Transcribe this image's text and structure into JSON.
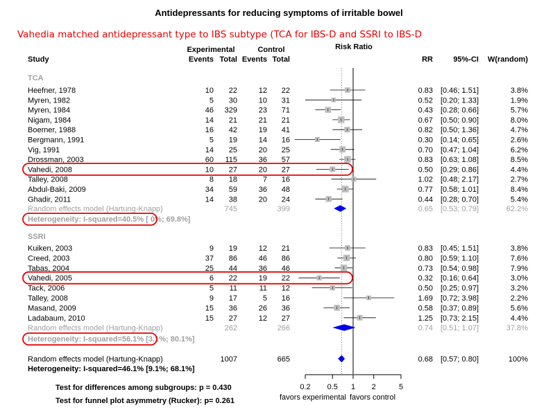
{
  "title": "Antidepressants for reducing symptoms of irritable bowel",
  "annotation": "Vahedia matched antidepressant type to IBS subtype (TCA for IBS-D and SSRI to IBS-D",
  "headers": {
    "study": "Study",
    "experimental": "Experimental",
    "control": "Control",
    "events": "Events",
    "total": "Total",
    "risk_ratio": "Risk Ratio",
    "rr": "RR",
    "ci": "95%-CI",
    "weight": "W(random)"
  },
  "colors": {
    "square": "#bdbdbd",
    "diamond": "#0000ee",
    "grey_text": "#a0a0a0",
    "highlight": "#e60000",
    "dashed": "#808080"
  },
  "chart_data": {
    "type": "forest",
    "title": "Antidepressants for reducing symptoms of irritable bowel",
    "x_scale": "log",
    "xlim": [
      0.2,
      5
    ],
    "xticks": [
      0.2,
      0.5,
      1,
      2,
      5
    ],
    "xtick_labels": [
      "0.2",
      "0.5",
      "1",
      "2",
      "5"
    ],
    "reference_line": 1,
    "pooled_line": 0.68,
    "favors_left": "favors experimental",
    "favors_right": "favors control",
    "groups": [
      {
        "name": "TCA",
        "studies": [
          {
            "study": "Heefner, 1978",
            "e_ev": "10",
            "e_tot": "22",
            "c_ev": "12",
            "c_tot": "22",
            "rr": 0.83,
            "lo": 0.46,
            "hi": 1.51,
            "rr_text": "0.83",
            "ci_text": "[0.46; 1.51]",
            "w_text": "3.8%",
            "w": 3.8
          },
          {
            "study": "Myren, 1982",
            "e_ev": "5",
            "e_tot": "30",
            "c_ev": "10",
            "c_tot": "31",
            "rr": 0.52,
            "lo": 0.2,
            "hi": 1.33,
            "rr_text": "0.52",
            "ci_text": "[0.20; 1.33]",
            "w_text": "1.9%",
            "w": 1.9
          },
          {
            "study": "Myren, 1984",
            "e_ev": "46",
            "e_tot": "329",
            "c_ev": "23",
            "c_tot": "71",
            "rr": 0.43,
            "lo": 0.28,
            "hi": 0.66,
            "rr_text": "0.43",
            "ci_text": "[0.28; 0.66]",
            "w_text": "5.7%",
            "w": 5.7
          },
          {
            "study": "Nigam, 1984",
            "e_ev": "14",
            "e_tot": "21",
            "c_ev": "21",
            "c_tot": "21",
            "rr": 0.67,
            "lo": 0.5,
            "hi": 0.9,
            "rr_text": "0.67",
            "ci_text": "[0.50; 0.90]",
            "w_text": "8.0%",
            "w": 8.0
          },
          {
            "study": "Boerner, 1988",
            "e_ev": "16",
            "e_tot": "42",
            "c_ev": "19",
            "c_tot": "41",
            "rr": 0.82,
            "lo": 0.5,
            "hi": 1.36,
            "rr_text": "0.82",
            "ci_text": "[0.50; 1.36]",
            "w_text": "4.7%",
            "w": 4.7
          },
          {
            "study": "Bergmann, 1991",
            "e_ev": "5",
            "e_tot": "19",
            "c_ev": "14",
            "c_tot": "16",
            "rr": 0.3,
            "lo": 0.14,
            "hi": 0.65,
            "rr_text": "0.30",
            "ci_text": "[0.14; 0.65]",
            "w_text": "2.6%",
            "w": 2.6
          },
          {
            "study": "Vig, 1991",
            "e_ev": "14",
            "e_tot": "25",
            "c_ev": "20",
            "c_tot": "25",
            "rr": 0.7,
            "lo": 0.47,
            "hi": 1.04,
            "rr_text": "0.70",
            "ci_text": "[0.47; 1.04]",
            "w_text": "6.2%",
            "w": 6.2
          },
          {
            "study": "Drossman, 2003",
            "e_ev": "60",
            "e_tot": "115",
            "c_ev": "36",
            "c_tot": "57",
            "rr": 0.83,
            "lo": 0.63,
            "hi": 1.08,
            "rr_text": "0.83",
            "ci_text": "[0.63; 1.08]",
            "w_text": "8.5%",
            "w": 8.5
          },
          {
            "study": "Vahedi, 2008",
            "e_ev": "10",
            "e_tot": "27",
            "c_ev": "20",
            "c_tot": "27",
            "rr": 0.5,
            "lo": 0.29,
            "hi": 0.86,
            "rr_text": "0.50",
            "ci_text": "[0.29; 0.86]",
            "w_text": "4.4%",
            "w": 4.4,
            "highlight": true
          },
          {
            "study": "Talley, 2008",
            "e_ev": "8",
            "e_tot": "18",
            "c_ev": "7",
            "c_tot": "16",
            "rr": 1.02,
            "lo": 0.48,
            "hi": 2.17,
            "rr_text": "1.02",
            "ci_text": "[0.48; 2.17]",
            "w_text": "2.7%",
            "w": 2.7
          },
          {
            "study": "Abdul-Baki, 2009",
            "e_ev": "34",
            "e_tot": "59",
            "c_ev": "36",
            "c_tot": "48",
            "rr": 0.77,
            "lo": 0.58,
            "hi": 1.01,
            "rr_text": "0.77",
            "ci_text": "[0.58; 1.01]",
            "w_text": "8.4%",
            "w": 8.4
          },
          {
            "study": "Ghadir, 2011",
            "e_ev": "14",
            "e_tot": "38",
            "c_ev": "20",
            "c_tot": "24",
            "rr": 0.44,
            "lo": 0.28,
            "hi": 0.7,
            "rr_text": "0.44",
            "ci_text": "[0.28; 0.70]",
            "w_text": "5.4%",
            "w": 5.4
          }
        ],
        "summary": {
          "label": "Random effects model  (Hartung-Knapp)",
          "e_tot": "745",
          "c_tot": "399",
          "rr": 0.65,
          "lo": 0.53,
          "hi": 0.79,
          "rr_text": "0.65",
          "ci_text": "[0.53; 0.79]",
          "w_text": "62.2%"
        },
        "heterogeneity": "Heterogeneity: I-squared=40.5% [  0%; 69.8%]"
      },
      {
        "name": "SSRI",
        "studies": [
          {
            "study": "Kuiken, 2003",
            "e_ev": "9",
            "e_tot": "19",
            "c_ev": "12",
            "c_tot": "21",
            "rr": 0.83,
            "lo": 0.45,
            "hi": 1.51,
            "rr_text": "0.83",
            "ci_text": "[0.45; 1.51]",
            "w_text": "3.8%",
            "w": 3.8
          },
          {
            "study": "Creed, 2003",
            "e_ev": "37",
            "e_tot": "86",
            "c_ev": "46",
            "c_tot": "86",
            "rr": 0.8,
            "lo": 0.59,
            "hi": 1.1,
            "rr_text": "0.80",
            "ci_text": "[0.59; 1.10]",
            "w_text": "7.6%",
            "w": 7.6
          },
          {
            "study": "Tabas, 2004",
            "e_ev": "25",
            "e_tot": "44",
            "c_ev": "36",
            "c_tot": "46",
            "rr": 0.73,
            "lo": 0.54,
            "hi": 0.98,
            "rr_text": "0.73",
            "ci_text": "[0.54; 0.98]",
            "w_text": "7.9%",
            "w": 7.9
          },
          {
            "study": "Vahedi, 2005",
            "e_ev": "6",
            "e_tot": "22",
            "c_ev": "19",
            "c_tot": "22",
            "rr": 0.32,
            "lo": 0.16,
            "hi": 0.64,
            "rr_text": "0.32",
            "ci_text": "[0.16; 0.64]",
            "w_text": "3.0%",
            "w": 3.0,
            "highlight": true
          },
          {
            "study": "Tack, 2006",
            "e_ev": "5",
            "e_tot": "11",
            "c_ev": "11",
            "c_tot": "12",
            "rr": 0.5,
            "lo": 0.25,
            "hi": 0.97,
            "rr_text": "0.50",
            "ci_text": "[0.25; 0.97]",
            "w_text": "3.2%",
            "w": 3.2
          },
          {
            "study": "Talley, 2008",
            "e_ev": "9",
            "e_tot": "17",
            "c_ev": "5",
            "c_tot": "16",
            "rr": 1.69,
            "lo": 0.72,
            "hi": 3.98,
            "rr_text": "1.69",
            "ci_text": "[0.72; 3.98]",
            "w_text": "2.2%",
            "w": 2.2
          },
          {
            "study": "Masand, 2009",
            "e_ev": "15",
            "e_tot": "36",
            "c_ev": "26",
            "c_tot": "36",
            "rr": 0.58,
            "lo": 0.37,
            "hi": 0.89,
            "rr_text": "0.58",
            "ci_text": "[0.37; 0.89]",
            "w_text": "5.6%",
            "w": 5.6
          },
          {
            "study": "Ladabaum, 2010",
            "e_ev": "15",
            "e_tot": "27",
            "c_ev": "12",
            "c_tot": "27",
            "rr": 1.25,
            "lo": 0.73,
            "hi": 2.15,
            "rr_text": "1.25",
            "ci_text": "[0.73; 2.15]",
            "w_text": "4.4%",
            "w": 4.4
          }
        ],
        "summary": {
          "label": "Random effects model  (Hartung-Knapp)",
          "e_tot": "262",
          "c_tot": "266",
          "rr": 0.74,
          "lo": 0.51,
          "hi": 1.07,
          "rr_text": "0.74",
          "ci_text": "[0.51; 1.07]",
          "w_text": "37.8%"
        },
        "heterogeneity": "Heterogeneity: I-squared=56.1% [3.1%; 80.1%]"
      }
    ],
    "overall": {
      "label": "Random effects model  (Hartung-Knapp)",
      "e_tot": "1007",
      "c_tot": "665",
      "rr": 0.68,
      "lo": 0.57,
      "hi": 0.8,
      "rr_text": "0.68",
      "ci_text": "[0.57; 0.80]",
      "w_text": "100%"
    },
    "overall_heterogeneity": "Heterogeneity: I-squared=46.1% [9.1%; 68.1%]",
    "tests": [
      "Test for differences among subgroups: p = 0.430",
      "Test for funnel plot asymmetry (Rucker): p= 0.261"
    ]
  }
}
